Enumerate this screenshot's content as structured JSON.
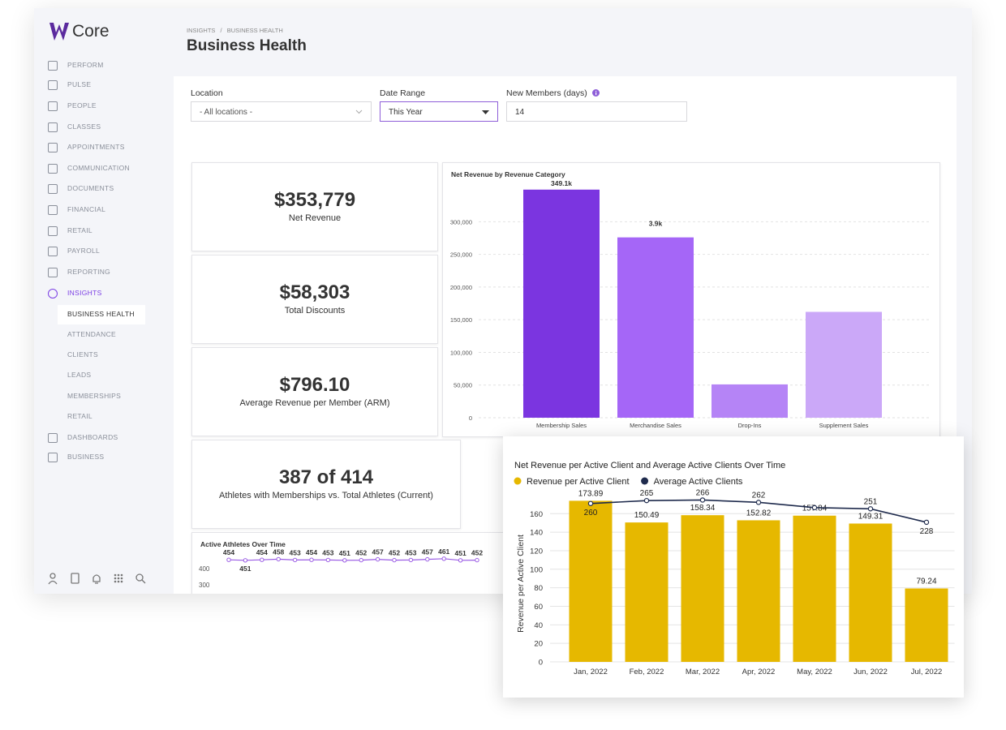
{
  "sidebar": {
    "logo": "Core",
    "nav": [
      "PERFORM",
      "PULSE",
      "PEOPLE",
      "CLASSES",
      "APPOINTMENTS",
      "COMMUNICATION",
      "DOCUMENTS",
      "FINANCIAL",
      "RETAIL",
      "PAYROLL",
      "REPORTING",
      "INSIGHTS"
    ],
    "subnav": [
      "BUSINESS HEALTH",
      "ATTENDANCE",
      "CLIENTS",
      "LEADS",
      "MEMBERSHIPS",
      "RETAIL"
    ],
    "nav_bottom": [
      "DASHBOARDS",
      "BUSINESS"
    ]
  },
  "header": {
    "breadcrumb": [
      "INSIGHTS",
      "BUSINESS HEALTH"
    ],
    "separator": "/",
    "title": "Business Health"
  },
  "filters": [
    {
      "label": "Location",
      "value": "- All locations -"
    },
    {
      "label": "Date Range",
      "value": "This Year"
    },
    {
      "label": "New Members (days)",
      "value": "14"
    }
  ],
  "kpis": [
    {
      "value": "$353,779",
      "label": "Net Revenue"
    },
    {
      "value": "$58,303",
      "label": "Total Discounts"
    },
    {
      "value": "$796.10",
      "label": "Average Revenue per Member (ARM)"
    },
    {
      "value": "387 of 414",
      "label": "Athletes with Memberships vs. Total Athletes (Current)"
    }
  ],
  "chart_data": [
    {
      "type": "bar",
      "title": "Net Revenue by Revenue Category",
      "categories": [
        "Membership Sales",
        "Merchandise Sales",
        "Drop-Ins",
        "Supplement Sales"
      ],
      "values": [
        349100,
        276000,
        51000,
        162000
      ],
      "value_labels": [
        "349.1k",
        null,
        null,
        null
      ],
      "annotations": [
        "3.9k"
      ],
      "colors": [
        "#7b35e0",
        "#a566f7",
        "#b584f6",
        "#cba8f8"
      ],
      "ylim": [
        0,
        360000
      ],
      "yticks": [
        0,
        {
          "value": 50000,
          "label": "50,000"
        },
        {
          "value": 100000,
          "label": "100,000"
        },
        {
          "value": 150000,
          "label": "150,000"
        },
        {
          "value": 200000,
          "label": "200,000"
        },
        {
          "value": 250000,
          "label": "250,000"
        },
        {
          "value": 300000,
          "label": "300,000"
        }
      ],
      "grid": true
    },
    {
      "type": "line",
      "title": "Active Athletes Over Time",
      "values": [
        454,
        451,
        454,
        458,
        453,
        454,
        453,
        451,
        452,
        457,
        452,
        453,
        457,
        461,
        451,
        452
      ],
      "color": "#9b5de5",
      "ylim": [
        0,
        480
      ],
      "yticks": [
        300,
        400
      ]
    },
    {
      "type": "combo",
      "title": "Net Revenue per Active Client and Average Active Clients Over Time",
      "categories": [
        "Jan, 2022",
        "Feb, 2022",
        "Mar, 2022",
        "Apr, 2022",
        "May, 2022",
        "Jun, 2022",
        "Jul, 2022"
      ],
      "ylabel": "Revenue per Active Client",
      "series": [
        {
          "name": "Revenue per Active Client",
          "type": "bar",
          "color": "#e6b800",
          "values": [
            173.89,
            150.49,
            158.34,
            152.82,
            157.84,
            149.31,
            79.24
          ]
        },
        {
          "name": "Average Active Clients",
          "type": "line",
          "axis": "y2",
          "color": "#1f2b4d",
          "values": [
            260,
            265,
            266,
            262,
            253,
            251,
            228
          ],
          "value_labels": [
            "260",
            "265",
            "266",
            "262",
            null,
            "251",
            "228"
          ]
        }
      ],
      "ylim": [
        0,
        176
      ],
      "yticks": [
        0,
        20,
        40,
        60,
        80,
        100,
        120,
        140,
        160
      ],
      "y2lim": [
        -10,
        268
      ],
      "grid": true
    }
  ]
}
